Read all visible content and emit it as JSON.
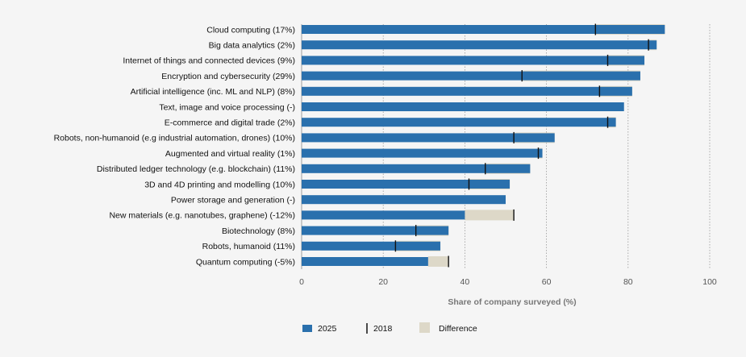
{
  "chart_data": {
    "type": "bar",
    "orientation": "horizontal",
    "xlabel": "Share of company surveyed (%)",
    "xlim": [
      0,
      100
    ],
    "xticks": [
      "0",
      "20",
      "40",
      "60",
      "80",
      "100"
    ],
    "grid": "vertical dotted",
    "legend_position": "bottom-left",
    "legend": {
      "label_2025": "2025",
      "label_2018": "2018",
      "label_difference": "Difference"
    },
    "colors": {
      "bar_2025": "#2a70ad",
      "marker_2018": "#111111",
      "difference": "#ddd8c8",
      "grid": "#999999"
    },
    "categories": [
      "Cloud computing (17%)",
      "Big data analytics (2%)",
      "Internet of things and connected devices (9%)",
      "Encryption and cybersecurity (29%)",
      "Artificial intelligence (inc. ML and NLP) (8%)",
      "Text, image and voice processing (-)",
      "E-commerce and digital trade (2%)",
      "Robots, non-humanoid (e.g industrial automation, drones) (10%)",
      "Augmented and virtual reality (1%)",
      "Distributed ledger technology (e.g. blockchain) (11%)",
      "3D and 4D printing and modelling (10%)",
      "Power storage and generation (-)",
      "New materials (e.g. nanotubes, graphene) (-12%)",
      "Biotechnology (8%)",
      "Robots, humanoid (11%)",
      "Quantum computing (-5%)"
    ],
    "series": [
      {
        "name": "2025",
        "values": [
          89,
          87,
          84,
          83,
          81,
          79,
          77,
          62,
          59,
          56,
          51,
          50,
          40,
          36,
          34,
          31
        ]
      },
      {
        "name": "2018",
        "values": [
          72,
          85,
          75,
          54,
          73,
          null,
          75,
          52,
          58,
          45,
          41,
          null,
          52,
          28,
          23,
          36
        ]
      }
    ]
  }
}
